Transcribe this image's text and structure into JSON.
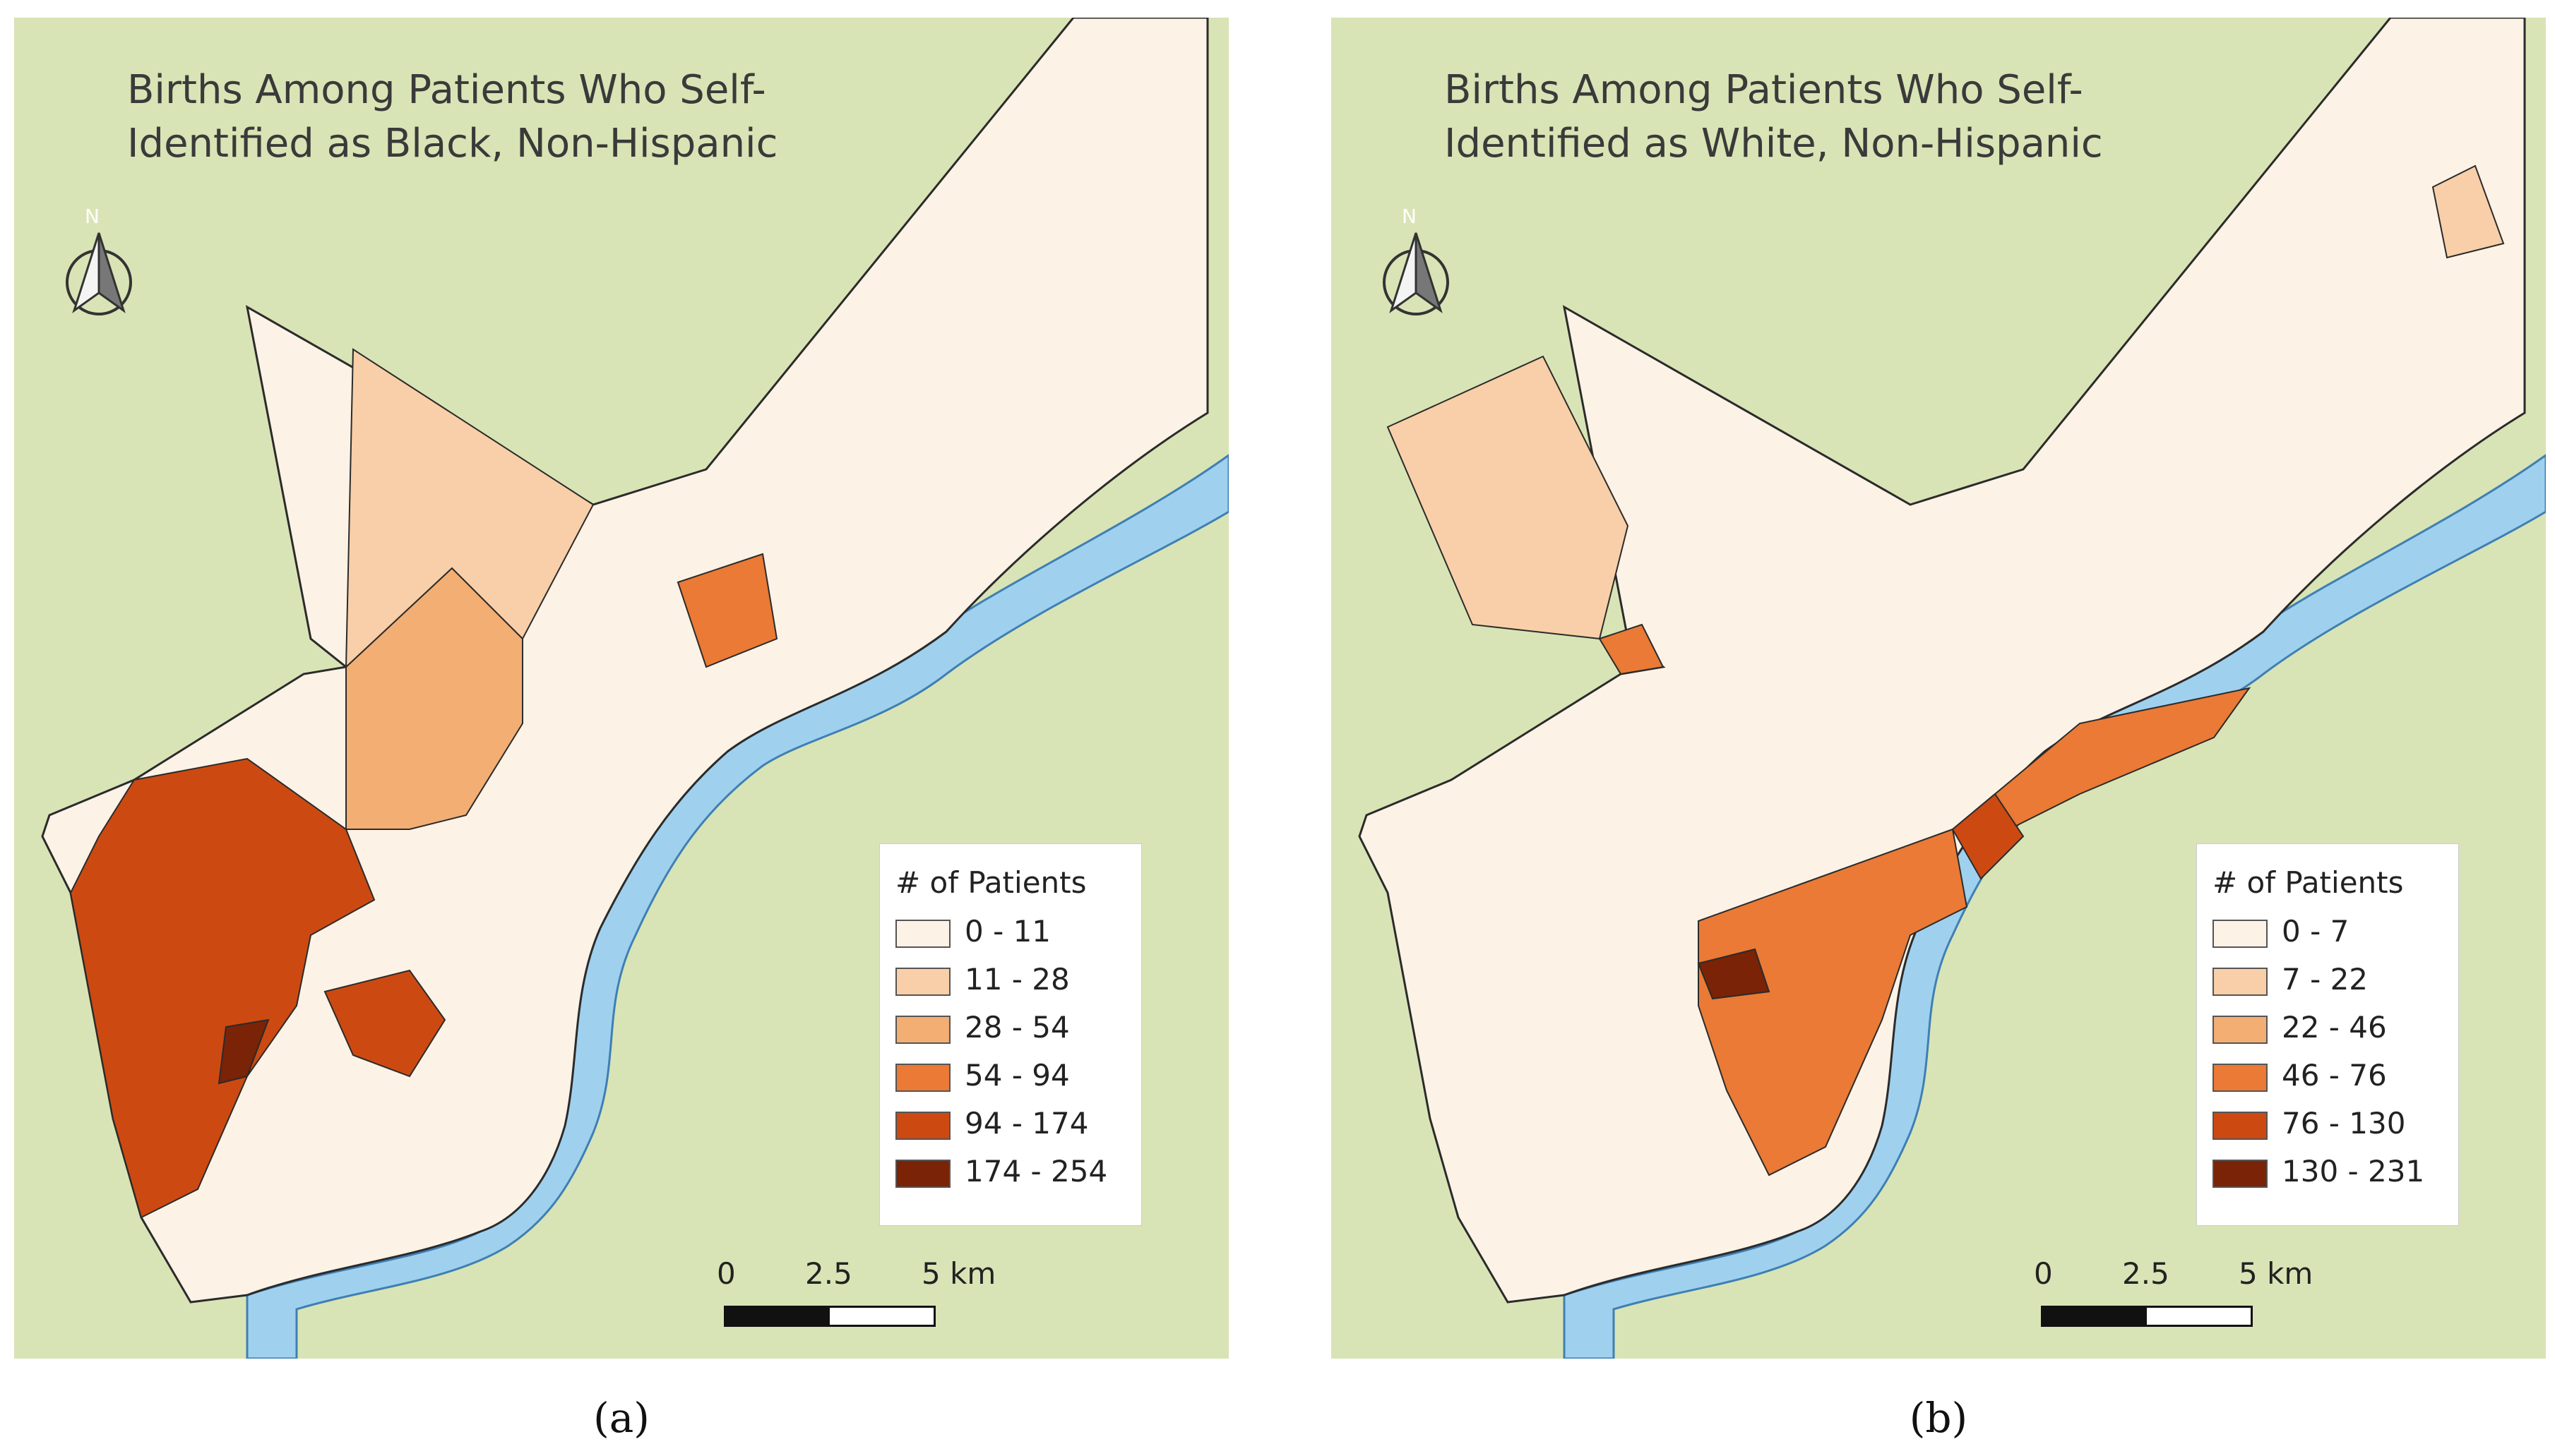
{
  "colors": {
    "background_land": "#d8e4b5",
    "water": "#9fd1ef",
    "water_stroke": "#3f7fb3",
    "boundary": "#2b2b2b",
    "page": "#ffffff"
  },
  "panels": [
    {
      "label": "(a)",
      "title_lines": [
        "Births Among Patients Who Self-",
        "Identified as Black, Non-Hispanic"
      ],
      "north_label": "N",
      "legend": {
        "title": "# of Patients",
        "items": [
          {
            "label": "0 - 11",
            "color": "#fdf2e6"
          },
          {
            "label": "11 - 28",
            "color": "#f8cfa8"
          },
          {
            "label": "28 - 54",
            "color": "#f3ae74"
          },
          {
            "label": "54 - 94",
            "color": "#ea7a35"
          },
          {
            "label": "94 - 174",
            "color": "#cc4a12"
          },
          {
            "label": "174 - 254",
            "color": "#7a2306"
          }
        ]
      },
      "scale": {
        "ticks": [
          "0",
          "2.5",
          "5 km"
        ]
      }
    },
    {
      "label": "(b)",
      "title_lines": [
        "Births Among Patients Who Self-",
        "Identified as White, Non-Hispanic"
      ],
      "north_label": "N",
      "legend": {
        "title": "# of Patients",
        "items": [
          {
            "label": "0 - 7",
            "color": "#fdf2e6"
          },
          {
            "label": "7 - 22",
            "color": "#f8cfa8"
          },
          {
            "label": "22 - 46",
            "color": "#f3ae74"
          },
          {
            "label": "46 - 76",
            "color": "#ea7a35"
          },
          {
            "label": "76 - 130",
            "color": "#cc4a12"
          },
          {
            "label": "130 - 231",
            "color": "#7a2306"
          }
        ]
      },
      "scale": {
        "ticks": [
          "0",
          "2.5",
          "5 km"
        ]
      }
    }
  ]
}
